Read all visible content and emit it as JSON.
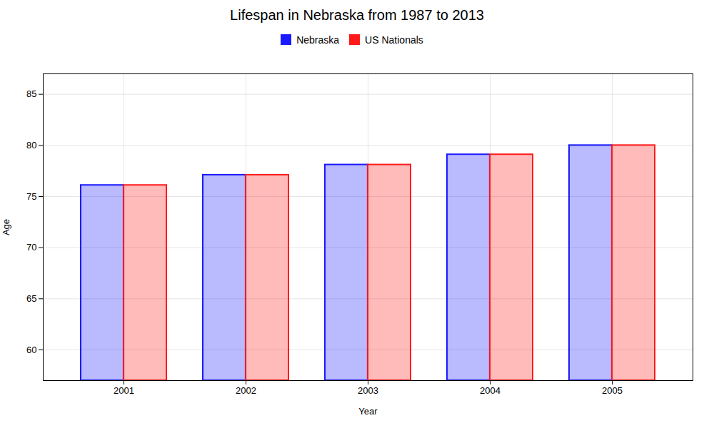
{
  "chart_data": {
    "type": "bar",
    "title": "Lifespan in Nebraska from 1987 to 2013",
    "xlabel": "Year",
    "ylabel": "Age",
    "categories": [
      "2001",
      "2002",
      "2003",
      "2004",
      "2005"
    ],
    "series": [
      {
        "name": "Nebraska",
        "color": "#1a1aff",
        "values": [
          76.1,
          77.1,
          78.1,
          79.1,
          80.0
        ]
      },
      {
        "name": "US Nationals",
        "color": "#ff1a1a",
        "values": [
          76.1,
          77.1,
          78.1,
          79.1,
          80.0
        ]
      }
    ],
    "ylim": [
      57,
      87
    ],
    "yticks": [
      60,
      65,
      70,
      75,
      80,
      85
    ],
    "grid": true,
    "legend": "top"
  }
}
